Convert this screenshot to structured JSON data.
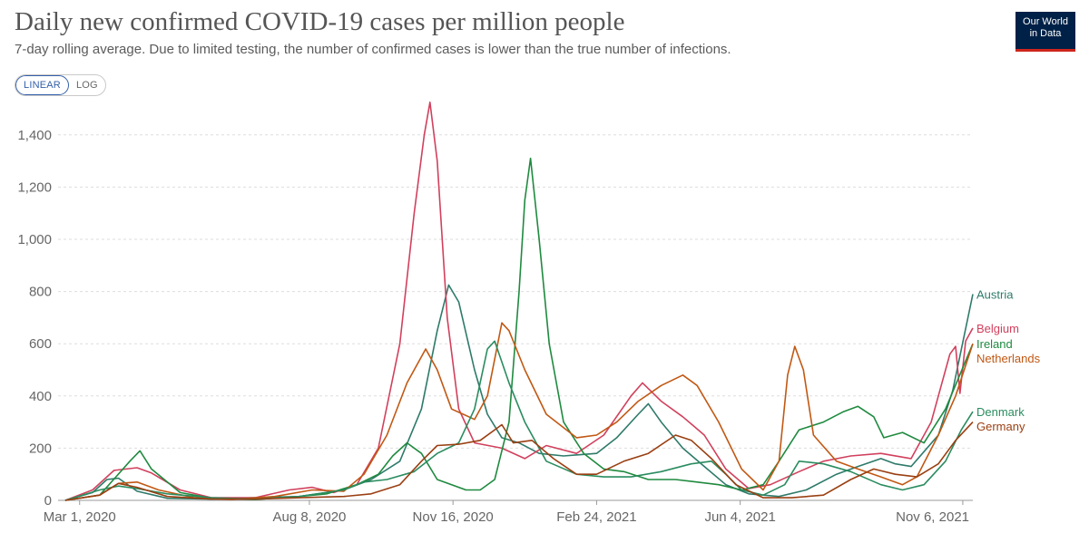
{
  "header": {
    "title": "Daily new confirmed COVID-19 cases per million people",
    "subtitle": "7-day rolling average. Due to limited testing, the number of confirmed cases is lower than the true number of infections.",
    "logo_line1": "Our World",
    "logo_line2": "in Data"
  },
  "controls": {
    "linear_label": "LINEAR",
    "log_label": "LOG",
    "selected": "LINEAR"
  },
  "chart_data": {
    "type": "line",
    "title": "Daily new confirmed COVID-19 cases per million people",
    "subtitle": "7-day rolling average. Due to limited testing, the number of confirmed cases is lower than the true number of infections.",
    "xlabel": "",
    "ylabel": "",
    "x_range": [
      "2020-02-15",
      "2021-11-13"
    ],
    "ylim": [
      0,
      1500
    ],
    "y_ticks": [
      0,
      200,
      400,
      600,
      800,
      1000,
      1200,
      1400
    ],
    "y_tick_labels": [
      "0",
      "200",
      "400",
      "600",
      "800",
      "1,000",
      "1,200",
      "1,400"
    ],
    "x_ticks": [
      "2020-03-01",
      "2020-08-08",
      "2020-11-16",
      "2021-02-24",
      "2021-06-04",
      "2021-11-06"
    ],
    "x_tick_labels": [
      "Mar 1, 2020",
      "Aug 8, 2020",
      "Nov 16, 2020",
      "Feb 24, 2021",
      "Jun 4, 2021",
      "Nov 6, 2021"
    ],
    "grid": "horizontal dashed",
    "legend_placement": "right, at line ends",
    "series": [
      {
        "name": "Austria",
        "color": "#2e7a6a",
        "points": [
          [
            "2020-02-20",
            0
          ],
          [
            "2020-03-10",
            30
          ],
          [
            "2020-03-20",
            80
          ],
          [
            "2020-03-28",
            85
          ],
          [
            "2020-04-10",
            35
          ],
          [
            "2020-05-01",
            8
          ],
          [
            "2020-06-01",
            5
          ],
          [
            "2020-07-01",
            10
          ],
          [
            "2020-08-01",
            15
          ],
          [
            "2020-09-01",
            40
          ],
          [
            "2020-09-20",
            80
          ],
          [
            "2020-10-10",
            150
          ],
          [
            "2020-10-25",
            350
          ],
          [
            "2020-11-05",
            650
          ],
          [
            "2020-11-13",
            825
          ],
          [
            "2020-11-20",
            760
          ],
          [
            "2020-12-01",
            500
          ],
          [
            "2020-12-10",
            330
          ],
          [
            "2020-12-20",
            240
          ],
          [
            "2021-01-01",
            220
          ],
          [
            "2021-01-15",
            180
          ],
          [
            "2021-02-01",
            170
          ],
          [
            "2021-02-24",
            180
          ],
          [
            "2021-03-10",
            240
          ],
          [
            "2021-03-25",
            330
          ],
          [
            "2021-04-01",
            370
          ],
          [
            "2021-04-10",
            300
          ],
          [
            "2021-04-25",
            200
          ],
          [
            "2021-05-10",
            130
          ],
          [
            "2021-05-25",
            60
          ],
          [
            "2021-06-10",
            25
          ],
          [
            "2021-07-01",
            15
          ],
          [
            "2021-07-20",
            40
          ],
          [
            "2021-08-10",
            100
          ],
          [
            "2021-08-25",
            130
          ],
          [
            "2021-09-10",
            160
          ],
          [
            "2021-09-20",
            140
          ],
          [
            "2021-10-01",
            130
          ],
          [
            "2021-10-20",
            250
          ],
          [
            "2021-10-30",
            420
          ],
          [
            "2021-11-13",
            790
          ]
        ]
      },
      {
        "name": "Belgium",
        "color": "#d1405d",
        "points": [
          [
            "2020-02-20",
            0
          ],
          [
            "2020-03-10",
            40
          ],
          [
            "2020-03-25",
            115
          ],
          [
            "2020-04-10",
            125
          ],
          [
            "2020-04-20",
            105
          ],
          [
            "2020-05-10",
            40
          ],
          [
            "2020-06-01",
            10
          ],
          [
            "2020-07-01",
            10
          ],
          [
            "2020-07-25",
            40
          ],
          [
            "2020-08-10",
            50
          ],
          [
            "2020-08-25",
            30
          ],
          [
            "2020-09-10",
            60
          ],
          [
            "2020-09-25",
            200
          ],
          [
            "2020-10-10",
            600
          ],
          [
            "2020-10-20",
            1100
          ],
          [
            "2020-10-27",
            1400
          ],
          [
            "2020-10-31",
            1525
          ],
          [
            "2020-11-05",
            1300
          ],
          [
            "2020-11-12",
            700
          ],
          [
            "2020-11-20",
            350
          ],
          [
            "2020-12-01",
            220
          ],
          [
            "2020-12-20",
            200
          ],
          [
            "2021-01-05",
            160
          ],
          [
            "2021-01-20",
            210
          ],
          [
            "2021-02-10",
            180
          ],
          [
            "2021-03-01",
            250
          ],
          [
            "2021-03-20",
            400
          ],
          [
            "2021-03-28",
            450
          ],
          [
            "2021-04-10",
            380
          ],
          [
            "2021-04-25",
            320
          ],
          [
            "2021-05-10",
            250
          ],
          [
            "2021-05-25",
            120
          ],
          [
            "2021-06-10",
            45
          ],
          [
            "2021-06-25",
            60
          ],
          [
            "2021-07-15",
            110
          ],
          [
            "2021-08-01",
            150
          ],
          [
            "2021-08-20",
            170
          ],
          [
            "2021-09-10",
            180
          ],
          [
            "2021-10-01",
            160
          ],
          [
            "2021-10-15",
            300
          ],
          [
            "2021-10-28",
            560
          ],
          [
            "2021-11-01",
            590
          ],
          [
            "2021-11-04",
            410
          ],
          [
            "2021-11-08",
            610
          ],
          [
            "2021-11-13",
            660
          ]
        ]
      },
      {
        "name": "Ireland",
        "color": "#1f8a3f",
        "points": [
          [
            "2020-02-20",
            0
          ],
          [
            "2020-03-15",
            20
          ],
          [
            "2020-04-05",
            150
          ],
          [
            "2020-04-12",
            190
          ],
          [
            "2020-04-20",
            120
          ],
          [
            "2020-05-10",
            30
          ],
          [
            "2020-06-01",
            8
          ],
          [
            "2020-07-01",
            3
          ],
          [
            "2020-08-01",
            15
          ],
          [
            "2020-08-20",
            25
          ],
          [
            "2020-09-10",
            60
          ],
          [
            "2020-09-25",
            100
          ],
          [
            "2020-10-05",
            170
          ],
          [
            "2020-10-15",
            220
          ],
          [
            "2020-10-25",
            180
          ],
          [
            "2020-11-05",
            80
          ],
          [
            "2020-11-25",
            40
          ],
          [
            "2020-12-05",
            40
          ],
          [
            "2020-12-15",
            80
          ],
          [
            "2020-12-25",
            300
          ],
          [
            "2021-01-01",
            800
          ],
          [
            "2021-01-05",
            1150
          ],
          [
            "2021-01-09",
            1310
          ],
          [
            "2021-01-15",
            1000
          ],
          [
            "2021-01-22",
            600
          ],
          [
            "2021-02-01",
            300
          ],
          [
            "2021-02-15",
            180
          ],
          [
            "2021-03-01",
            120
          ],
          [
            "2021-03-15",
            110
          ],
          [
            "2021-04-01",
            80
          ],
          [
            "2021-04-20",
            80
          ],
          [
            "2021-05-05",
            70
          ],
          [
            "2021-05-20",
            60
          ],
          [
            "2021-06-05",
            40
          ],
          [
            "2021-06-20",
            60
          ],
          [
            "2021-07-01",
            150
          ],
          [
            "2021-07-15",
            270
          ],
          [
            "2021-08-01",
            300
          ],
          [
            "2021-08-15",
            340
          ],
          [
            "2021-08-25",
            360
          ],
          [
            "2021-09-05",
            320
          ],
          [
            "2021-09-12",
            240
          ],
          [
            "2021-09-25",
            260
          ],
          [
            "2021-10-10",
            220
          ],
          [
            "2021-10-25",
            350
          ],
          [
            "2021-11-13",
            600
          ]
        ]
      },
      {
        "name": "Netherlands",
        "color": "#c15813",
        "points": [
          [
            "2020-02-20",
            0
          ],
          [
            "2020-03-15",
            20
          ],
          [
            "2020-03-28",
            65
          ],
          [
            "2020-04-10",
            70
          ],
          [
            "2020-04-25",
            40
          ],
          [
            "2020-05-20",
            10
          ],
          [
            "2020-06-15",
            3
          ],
          [
            "2020-07-15",
            15
          ],
          [
            "2020-08-10",
            40
          ],
          [
            "2020-09-01",
            35
          ],
          [
            "2020-09-15",
            100
          ],
          [
            "2020-10-01",
            250
          ],
          [
            "2020-10-15",
            450
          ],
          [
            "2020-10-28",
            580
          ],
          [
            "2020-11-05",
            500
          ],
          [
            "2020-11-15",
            350
          ],
          [
            "2020-12-01",
            310
          ],
          [
            "2020-12-10",
            400
          ],
          [
            "2020-12-20",
            680
          ],
          [
            "2020-12-25",
            650
          ],
          [
            "2021-01-05",
            500
          ],
          [
            "2021-01-20",
            330
          ],
          [
            "2021-02-10",
            240
          ],
          [
            "2021-02-24",
            250
          ],
          [
            "2021-03-10",
            300
          ],
          [
            "2021-03-25",
            380
          ],
          [
            "2021-04-10",
            440
          ],
          [
            "2021-04-25",
            480
          ],
          [
            "2021-05-05",
            440
          ],
          [
            "2021-05-20",
            300
          ],
          [
            "2021-06-05",
            120
          ],
          [
            "2021-06-20",
            40
          ],
          [
            "2021-07-01",
            150
          ],
          [
            "2021-07-07",
            480
          ],
          [
            "2021-07-12",
            590
          ],
          [
            "2021-07-18",
            500
          ],
          [
            "2021-07-25",
            250
          ],
          [
            "2021-08-10",
            150
          ],
          [
            "2021-08-25",
            120
          ],
          [
            "2021-09-10",
            90
          ],
          [
            "2021-09-25",
            60
          ],
          [
            "2021-10-05",
            90
          ],
          [
            "2021-10-20",
            250
          ],
          [
            "2021-11-01",
            400
          ],
          [
            "2021-11-13",
            600
          ]
        ]
      },
      {
        "name": "Denmark",
        "color": "#2a8c5f",
        "points": [
          [
            "2020-02-20",
            0
          ],
          [
            "2020-03-15",
            40
          ],
          [
            "2020-03-28",
            55
          ],
          [
            "2020-04-10",
            45
          ],
          [
            "2020-05-01",
            25
          ],
          [
            "2020-06-01",
            10
          ],
          [
            "2020-07-01",
            5
          ],
          [
            "2020-08-01",
            15
          ],
          [
            "2020-09-01",
            40
          ],
          [
            "2020-09-15",
            70
          ],
          [
            "2020-10-01",
            80
          ],
          [
            "2020-10-20",
            110
          ],
          [
            "2020-11-05",
            180
          ],
          [
            "2020-11-20",
            220
          ],
          [
            "2020-12-01",
            350
          ],
          [
            "2020-12-10",
            580
          ],
          [
            "2020-12-15",
            610
          ],
          [
            "2020-12-25",
            450
          ],
          [
            "2021-01-05",
            300
          ],
          [
            "2021-01-20",
            150
          ],
          [
            "2021-02-10",
            100
          ],
          [
            "2021-03-01",
            90
          ],
          [
            "2021-03-20",
            90
          ],
          [
            "2021-04-10",
            110
          ],
          [
            "2021-05-01",
            140
          ],
          [
            "2021-05-15",
            150
          ],
          [
            "2021-05-25",
            100
          ],
          [
            "2021-06-05",
            40
          ],
          [
            "2021-06-20",
            20
          ],
          [
            "2021-07-05",
            60
          ],
          [
            "2021-07-15",
            150
          ],
          [
            "2021-08-01",
            140
          ],
          [
            "2021-08-20",
            110
          ],
          [
            "2021-09-10",
            60
          ],
          [
            "2021-09-25",
            40
          ],
          [
            "2021-10-10",
            60
          ],
          [
            "2021-10-25",
            150
          ],
          [
            "2021-11-05",
            270
          ],
          [
            "2021-11-13",
            340
          ]
        ]
      },
      {
        "name": "Germany",
        "color": "#9a3f12",
        "points": [
          [
            "2020-02-20",
            0
          ],
          [
            "2020-03-15",
            20
          ],
          [
            "2020-03-28",
            65
          ],
          [
            "2020-04-10",
            50
          ],
          [
            "2020-05-01",
            15
          ],
          [
            "2020-06-01",
            5
          ],
          [
            "2020-07-01",
            5
          ],
          [
            "2020-08-01",
            10
          ],
          [
            "2020-09-01",
            15
          ],
          [
            "2020-09-20",
            25
          ],
          [
            "2020-10-10",
            60
          ],
          [
            "2020-10-25",
            150
          ],
          [
            "2020-11-05",
            210
          ],
          [
            "2020-11-20",
            215
          ],
          [
            "2020-12-05",
            230
          ],
          [
            "2020-12-20",
            290
          ],
          [
            "2020-12-28",
            220
          ],
          [
            "2021-01-10",
            230
          ],
          [
            "2021-01-25",
            160
          ],
          [
            "2021-02-10",
            100
          ],
          [
            "2021-02-24",
            100
          ],
          [
            "2021-03-15",
            150
          ],
          [
            "2021-04-01",
            180
          ],
          [
            "2021-04-20",
            250
          ],
          [
            "2021-05-01",
            230
          ],
          [
            "2021-05-15",
            160
          ],
          [
            "2021-06-01",
            60
          ],
          [
            "2021-06-20",
            10
          ],
          [
            "2021-07-10",
            10
          ],
          [
            "2021-08-01",
            20
          ],
          [
            "2021-08-20",
            80
          ],
          [
            "2021-09-05",
            120
          ],
          [
            "2021-09-20",
            100
          ],
          [
            "2021-10-05",
            90
          ],
          [
            "2021-10-20",
            140
          ],
          [
            "2021-11-01",
            230
          ],
          [
            "2021-11-13",
            300
          ]
        ]
      }
    ]
  }
}
